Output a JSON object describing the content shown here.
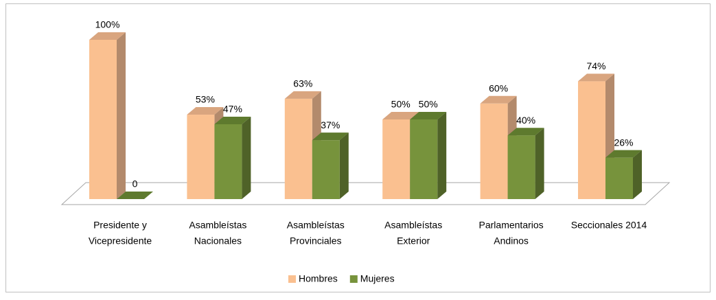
{
  "chart_data": {
    "type": "bar3d",
    "categories": [
      [
        "Presidente y",
        "Vicepresidente"
      ],
      [
        "Asambleístas",
        "Nacionales"
      ],
      [
        "Asambleístas",
        "Provinciales"
      ],
      [
        "Asambleístas",
        "Exterior"
      ],
      [
        "Parlamentarios",
        "Andinos"
      ],
      [
        "Seccionales 2014"
      ]
    ],
    "series": [
      {
        "name": "Hombres",
        "color": "#fac090",
        "side_color": "#b38a6c",
        "top_color": "#d9a57f",
        "values": [
          100,
          53,
          63,
          50,
          60,
          74
        ],
        "value_labels": [
          "100%",
          "53%",
          "63%",
          "50%",
          "60%",
          "74%"
        ]
      },
      {
        "name": "Mujeres",
        "color": "#77933c",
        "side_color": "#4f6228",
        "top_color": "#5e7a2e",
        "values": [
          0,
          47,
          37,
          50,
          40,
          26
        ],
        "value_labels": [
          "0",
          "47%",
          "37%",
          "50%",
          "40%",
          "26%"
        ]
      }
    ],
    "ylim": [
      0,
      100
    ],
    "legend": "bottom"
  }
}
